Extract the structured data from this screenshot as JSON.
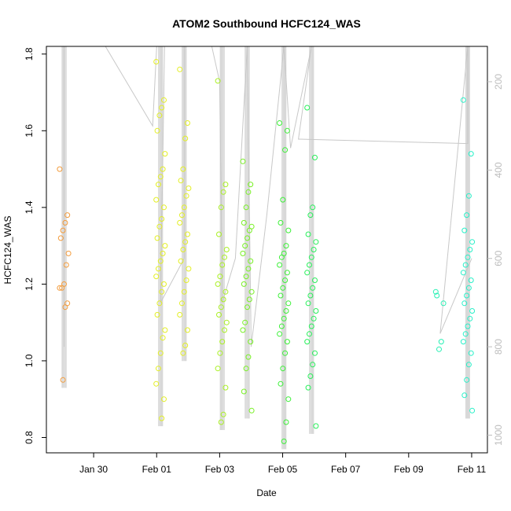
{
  "chart_data": {
    "type": "scatter",
    "title": "ATOM2 Southbound HCFC124_WAS",
    "xlabel": "Date",
    "ylabel": "HCFC124_WAS",
    "x_range": [
      "2017-01-28T12:00",
      "2017-02-11T12:00"
    ],
    "ylim": [
      0.76,
      1.82
    ],
    "y_ticks": [
      0.8,
      1.0,
      1.2,
      1.4,
      1.6,
      1.8
    ],
    "y_tick_labels": [
      "0.8",
      "1.0",
      "1.2",
      "1.4",
      "1.6",
      "1.8"
    ],
    "x_ticks": [
      "2017-01-30T00:00",
      "2017-02-01T00:00",
      "2017-02-03T00:00",
      "2017-02-05T00:00",
      "2017-02-07T00:00",
      "2017-02-09T00:00",
      "2017-02-11T00:00"
    ],
    "x_tick_labels": [
      "Jan 30",
      "Feb 01",
      "Feb 03",
      "Feb 05",
      "Feb 07",
      "Feb 09",
      "Feb 11"
    ],
    "secondary_axis": {
      "position": "right",
      "ylim": [
        1040,
        120
      ],
      "ticks": [
        200,
        400,
        600,
        800,
        1000
      ],
      "tick_labels": [
        "200",
        "400",
        "600",
        "800",
        "1000"
      ],
      "color": "#bdbdbd"
    },
    "grid": false,
    "groups": [
      {
        "date": "2017-01-29",
        "color": "#f39c3c",
        "x": [
          "2017-01-29T01:30",
          "2017-01-29T01:30",
          "2017-01-29T01:30",
          "2017-01-29T01:30",
          "2017-01-29T01:30",
          "2017-01-29T01:30",
          "2017-01-29T01:30",
          "2017-01-29T01:30",
          "2017-01-29T01:30",
          "2017-01-29T01:30",
          "2017-01-29T01:30",
          "2017-01-29T01:30",
          "2017-01-29T01:30"
        ],
        "y": [
          1.5,
          1.38,
          1.36,
          1.34,
          1.32,
          1.28,
          1.25,
          1.2,
          1.19,
          1.19,
          1.15,
          1.14,
          0.95
        ]
      },
      {
        "date": "2017-02-01",
        "color": "#e3ef24",
        "x": [
          "2017-02-01T03:00",
          "2017-02-01T03:00",
          "2017-02-01T03:00",
          "2017-02-01T03:00",
          "2017-02-01T03:00",
          "2017-02-01T03:00",
          "2017-02-01T03:00",
          "2017-02-01T03:00",
          "2017-02-01T03:00",
          "2017-02-01T03:00",
          "2017-02-01T03:00",
          "2017-02-01T03:00",
          "2017-02-01T03:00",
          "2017-02-01T03:00",
          "2017-02-01T03:00",
          "2017-02-01T03:00",
          "2017-02-01T03:00",
          "2017-02-01T03:00",
          "2017-02-01T03:00",
          "2017-02-01T03:00",
          "2017-02-01T03:00",
          "2017-02-01T03:00",
          "2017-02-01T03:00",
          "2017-02-01T03:00",
          "2017-02-01T03:00",
          "2017-02-01T03:00",
          "2017-02-01T03:00",
          "2017-02-01T03:00",
          "2017-02-01T03:00",
          "2017-02-01T03:00"
        ],
        "y": [
          1.78,
          1.68,
          1.66,
          1.64,
          1.6,
          1.54,
          1.5,
          1.48,
          1.46,
          1.42,
          1.4,
          1.37,
          1.35,
          1.32,
          1.3,
          1.28,
          1.26,
          1.24,
          1.22,
          1.2,
          1.18,
          1.15,
          1.12,
          1.08,
          1.06,
          1.02,
          0.98,
          0.94,
          0.9,
          0.85
        ]
      },
      {
        "date": "2017-02-01b",
        "color": "#e3ef24",
        "x": [
          "2017-02-01T21:00",
          "2017-02-01T21:00",
          "2017-02-01T21:00",
          "2017-02-01T21:00",
          "2017-02-01T21:00",
          "2017-02-01T21:00",
          "2017-02-01T21:00",
          "2017-02-01T21:00",
          "2017-02-01T21:00",
          "2017-02-01T21:00",
          "2017-02-01T21:00",
          "2017-02-01T21:00",
          "2017-02-01T21:00",
          "2017-02-01T21:00",
          "2017-02-01T21:00",
          "2017-02-01T21:00",
          "2017-02-01T21:00",
          "2017-02-01T21:00",
          "2017-02-01T21:00",
          "2017-02-01T21:00",
          "2017-02-01T21:00",
          "2017-02-01T21:00"
        ],
        "y": [
          1.76,
          1.62,
          1.58,
          1.5,
          1.47,
          1.45,
          1.43,
          1.4,
          1.38,
          1.36,
          1.33,
          1.31,
          1.29,
          1.26,
          1.24,
          1.21,
          1.18,
          1.15,
          1.12,
          1.08,
          1.04,
          1.02
        ]
      },
      {
        "date": "2017-02-03",
        "color": "#aaf024",
        "x": [
          "2017-02-03T02:00",
          "2017-02-03T02:00",
          "2017-02-03T02:00",
          "2017-02-03T02:00",
          "2017-02-03T02:00",
          "2017-02-03T02:00",
          "2017-02-03T02:00",
          "2017-02-03T02:00",
          "2017-02-03T02:00",
          "2017-02-03T02:00",
          "2017-02-03T02:00",
          "2017-02-03T02:00",
          "2017-02-03T02:00",
          "2017-02-03T02:00",
          "2017-02-03T02:00",
          "2017-02-03T02:00",
          "2017-02-03T02:00",
          "2017-02-03T02:00",
          "2017-02-03T02:00",
          "2017-02-03T02:00",
          "2017-02-03T02:00",
          "2017-02-03T02:00"
        ],
        "y": [
          1.73,
          1.46,
          1.44,
          1.4,
          1.33,
          1.29,
          1.27,
          1.25,
          1.22,
          1.2,
          1.18,
          1.16,
          1.14,
          1.12,
          1.1,
          1.08,
          1.05,
          1.02,
          0.98,
          0.93,
          0.86,
          0.84
        ]
      },
      {
        "date": "2017-02-04",
        "color": "#78f024",
        "x": [
          "2017-02-03T21:00",
          "2017-02-03T21:00",
          "2017-02-03T21:00",
          "2017-02-03T21:00",
          "2017-02-03T21:00",
          "2017-02-03T21:00",
          "2017-02-03T21:00",
          "2017-02-03T21:00",
          "2017-02-03T21:00",
          "2017-02-03T21:00",
          "2017-02-03T21:00",
          "2017-02-03T21:00",
          "2017-02-03T21:00",
          "2017-02-03T21:00",
          "2017-02-03T21:00",
          "2017-02-03T21:00",
          "2017-02-03T21:00",
          "2017-02-03T21:00",
          "2017-02-03T21:00",
          "2017-02-03T21:00",
          "2017-02-03T21:00",
          "2017-02-03T21:00",
          "2017-02-03T21:00",
          "2017-02-03T21:00"
        ],
        "y": [
          1.52,
          1.46,
          1.44,
          1.4,
          1.36,
          1.35,
          1.34,
          1.32,
          1.3,
          1.28,
          1.26,
          1.24,
          1.22,
          1.2,
          1.18,
          1.16,
          1.14,
          1.1,
          1.08,
          1.05,
          1.01,
          0.98,
          0.92,
          0.87
        ]
      },
      {
        "date": "2017-02-05",
        "color": "#3cf038",
        "x": [
          "2017-02-05T01:00",
          "2017-02-05T01:00",
          "2017-02-05T01:00",
          "2017-02-05T01:00",
          "2017-02-05T01:00",
          "2017-02-05T01:00",
          "2017-02-05T01:00",
          "2017-02-05T01:00",
          "2017-02-05T01:00",
          "2017-02-05T01:00",
          "2017-02-05T01:00",
          "2017-02-05T01:00",
          "2017-02-05T01:00",
          "2017-02-05T01:00",
          "2017-02-05T01:00",
          "2017-02-05T01:00",
          "2017-02-05T01:00",
          "2017-02-05T01:00",
          "2017-02-05T01:00",
          "2017-02-05T01:00",
          "2017-02-05T01:00",
          "2017-02-05T01:00",
          "2017-02-05T01:00",
          "2017-02-05T01:00",
          "2017-02-05T01:00",
          "2017-02-05T01:00"
        ],
        "y": [
          1.62,
          1.6,
          1.55,
          1.42,
          1.36,
          1.34,
          1.3,
          1.28,
          1.27,
          1.25,
          1.23,
          1.21,
          1.19,
          1.17,
          1.15,
          1.13,
          1.11,
          1.09,
          1.07,
          1.05,
          1.02,
          0.98,
          0.94,
          0.9,
          0.84,
          0.79
        ]
      },
      {
        "date": "2017-02-06",
        "color": "#28f05a",
        "x": [
          "2017-02-05T22:00",
          "2017-02-05T22:00",
          "2017-02-05T22:00",
          "2017-02-05T22:00",
          "2017-02-05T22:00",
          "2017-02-05T22:00",
          "2017-02-05T22:00",
          "2017-02-05T22:00",
          "2017-02-05T22:00",
          "2017-02-05T22:00",
          "2017-02-05T22:00",
          "2017-02-05T22:00",
          "2017-02-05T22:00",
          "2017-02-05T22:00",
          "2017-02-05T22:00",
          "2017-02-05T22:00",
          "2017-02-05T22:00",
          "2017-02-05T22:00",
          "2017-02-05T22:00",
          "2017-02-05T22:00",
          "2017-02-05T22:00",
          "2017-02-05T22:00",
          "2017-02-05T22:00",
          "2017-02-05T22:00"
        ],
        "y": [
          1.66,
          1.53,
          1.4,
          1.38,
          1.33,
          1.31,
          1.29,
          1.27,
          1.25,
          1.23,
          1.21,
          1.19,
          1.17,
          1.15,
          1.13,
          1.11,
          1.09,
          1.07,
          1.05,
          1.02,
          0.99,
          0.96,
          0.93,
          0.83
        ]
      },
      {
        "date": "2017-02-10",
        "color": "#28f0b4",
        "x": [
          "2017-02-10T00:00",
          "2017-02-10T00:00",
          "2017-02-10T00:00",
          "2017-02-10T00:00",
          "2017-02-10T00:00"
        ],
        "y": [
          1.18,
          1.15,
          1.05,
          1.03,
          1.17
        ]
      },
      {
        "date": "2017-02-11",
        "color": "#28f0c8",
        "x": [
          "2017-02-10T21:00",
          "2017-02-10T21:00",
          "2017-02-10T21:00",
          "2017-02-10T21:00",
          "2017-02-10T21:00",
          "2017-02-10T21:00",
          "2017-02-10T21:00",
          "2017-02-10T21:00",
          "2017-02-10T21:00",
          "2017-02-10T21:00",
          "2017-02-10T21:00",
          "2017-02-10T21:00",
          "2017-02-10T21:00",
          "2017-02-10T21:00",
          "2017-02-10T21:00",
          "2017-02-10T21:00",
          "2017-02-10T21:00",
          "2017-02-10T21:00",
          "2017-02-10T21:00",
          "2017-02-10T21:00",
          "2017-02-10T21:00",
          "2017-02-10T21:00",
          "2017-02-10T21:00",
          "2017-02-10T21:00"
        ],
        "y": [
          1.68,
          1.54,
          1.43,
          1.38,
          1.34,
          1.31,
          1.29,
          1.27,
          1.25,
          1.23,
          1.21,
          1.19,
          1.17,
          1.15,
          1.13,
          1.11,
          1.09,
          1.07,
          1.05,
          1.02,
          0.99,
          0.95,
          0.91,
          0.87
        ]
      }
    ],
    "altitude_track": [
      [
        "2017-01-29T01:30",
        120
      ],
      [
        "2017-01-29T01:30",
        800
      ],
      [
        "2017-01-29T01:30",
        120
      ],
      [
        "2017-01-30T09:00",
        120
      ],
      [
        "2017-01-31T21:00",
        300
      ],
      [
        "2017-02-01T00:00",
        120
      ],
      [
        "2017-02-01T06:00",
        120
      ],
      [
        "2017-02-01T03:00",
        700
      ],
      [
        "2017-02-01T21:00",
        600
      ],
      [
        "2017-02-01T21:00",
        120
      ],
      [
        "2017-02-02T18:00",
        120
      ],
      [
        "2017-02-03T00:00",
        200
      ],
      [
        "2017-02-03T02:00",
        700
      ],
      [
        "2017-02-03T12:00",
        600
      ],
      [
        "2017-02-03T21:00",
        120
      ],
      [
        "2017-02-04T00:00",
        800
      ],
      [
        "2017-02-04T12:00",
        500
      ],
      [
        "2017-02-05T01:00",
        120
      ],
      [
        "2017-02-05T06:00",
        350
      ],
      [
        "2017-02-05T22:00",
        120
      ],
      [
        "2017-02-05T12:00",
        330
      ],
      [
        "2017-02-10T21:00",
        340
      ],
      [
        "2017-02-10T21:00",
        120
      ],
      [
        "2017-02-10T00:00",
        770
      ],
      [
        "2017-02-11T00:00",
        600
      ]
    ]
  }
}
